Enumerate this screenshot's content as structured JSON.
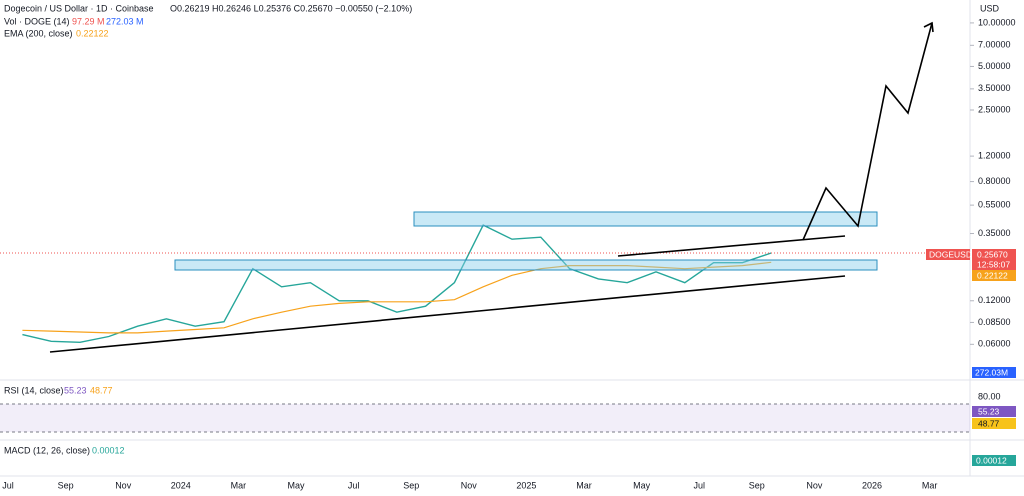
{
  "header": {
    "title": "Dogecoin / US Dollar · 1D · Coinbase",
    "ohlc": "O0.26219 H0.26246 L0.25376 C0.25670 −0.00550 (−2.10%)",
    "vol_label": "Vol · DOGE (14)",
    "vol_value": "97.29 M",
    "vol_ma": "272.03 M",
    "ema_value": "0.22122",
    "currency": "USD"
  },
  "price_tag": {
    "price": "0.25670",
    "countdown": "12:58:07",
    "volume": "272.03M"
  },
  "rsi": {
    "label": "RSI (14, close)",
    "value": "55.23",
    "ma": "48.77",
    "level": "80.00"
  },
  "macd": {
    "label": "MACD (12, 26, close)",
    "value": "0.00012"
  },
  "chart_data": {
    "type": "line",
    "log_scale": true,
    "grid": false,
    "categories": [
      "Jul",
      null,
      "Sep",
      null,
      "Nov",
      null,
      "2024",
      null,
      "Mar",
      null,
      "May",
      null,
      "Jul",
      null,
      "Sep",
      null,
      "Nov",
      null,
      "2025",
      null,
      "Mar",
      null,
      "May",
      null,
      "Jul",
      null,
      "Sep",
      null,
      "Nov",
      null,
      "2026",
      null,
      "Mar"
    ],
    "series": [
      {
        "name": "DOGEUSD",
        "color": "#26a69a",
        "values": [
          0.07,
          0.063,
          0.062,
          0.068,
          0.08,
          0.09,
          0.08,
          0.086,
          0.2,
          0.15,
          0.16,
          0.12,
          0.12,
          0.1,
          0.11,
          0.16,
          0.4,
          0.32,
          0.33,
          0.2,
          0.17,
          0.16,
          0.19,
          0.16,
          0.22,
          0.22,
          0.2567,
          null,
          null,
          null,
          null,
          null,
          null
        ]
      },
      {
        "name": "EMA (200, close)",
        "color": "#f7a21b",
        "values": [
          0.075,
          0.074,
          0.073,
          0.072,
          0.072,
          0.074,
          0.076,
          0.078,
          0.09,
          0.1,
          0.11,
          0.115,
          0.118,
          0.118,
          0.118,
          0.122,
          0.15,
          0.18,
          0.2,
          0.21,
          0.21,
          0.21,
          0.205,
          0.2,
          0.205,
          0.21,
          0.22122,
          null,
          null,
          null,
          null,
          null,
          null
        ]
      }
    ],
    "ylim": [
      0.034,
      14.4
    ],
    "yticks": [
      {
        "value": 10,
        "label": "10.00000"
      },
      {
        "value": 7,
        "label": "7.00000"
      },
      {
        "value": 5,
        "label": "5.00000"
      },
      {
        "value": 3.5,
        "label": "3.50000"
      },
      {
        "value": 2.5,
        "label": "2.50000"
      },
      {
        "value": 1.2,
        "label": "1.20000"
      },
      {
        "value": 0.8,
        "label": "0.80000"
      },
      {
        "value": 0.55,
        "label": "0.55000"
      },
      {
        "value": 0.35,
        "label": "0.35000"
      },
      {
        "value": 0.12,
        "label": "0.12000"
      },
      {
        "value": 0.085,
        "label": "0.08500"
      },
      {
        "value": 0.06,
        "label": "0.06000"
      }
    ]
  }
}
